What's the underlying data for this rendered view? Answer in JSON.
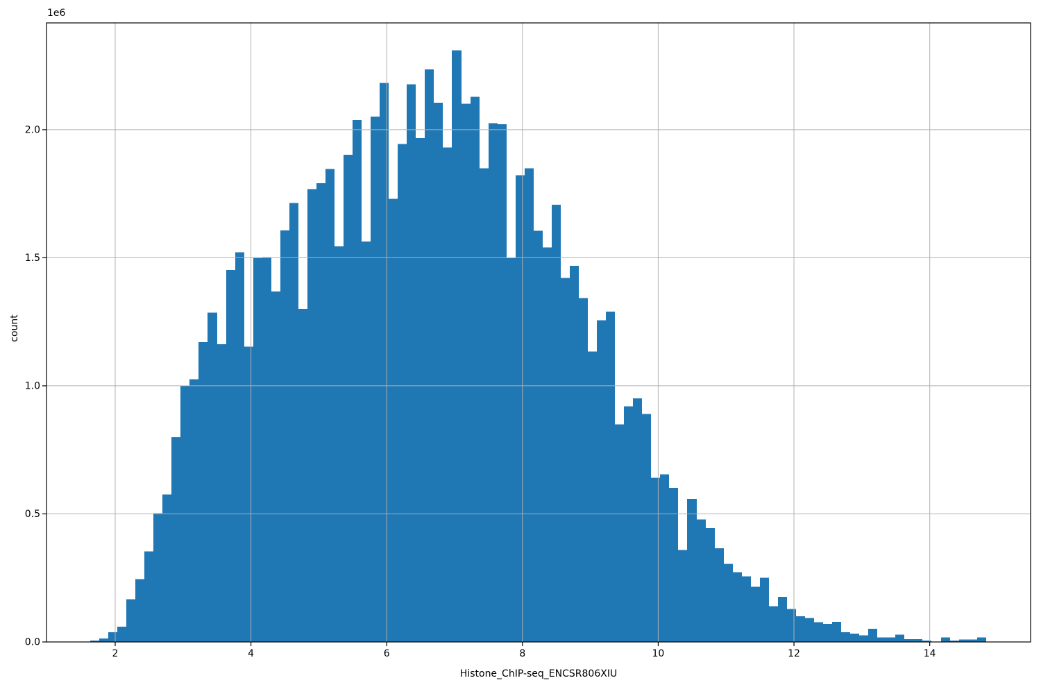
{
  "chart_data": {
    "type": "bar",
    "subtype": "histogram",
    "title": "",
    "xlabel": "Histone_ChIP-seq_ENCSR806XIU",
    "ylabel": "count",
    "offset_text": "1e6",
    "bar_color": "#1f77b4",
    "grid_color": "#b0b0b0",
    "spine_color": "#000000",
    "grid": true,
    "legend": "none",
    "xlim": [
      0.988,
      15.486
    ],
    "ylim": [
      0,
      2417000
    ],
    "xticks": [
      2,
      4,
      6,
      8,
      10,
      12,
      14
    ],
    "xtick_labels": [
      "2",
      "4",
      "6",
      "8",
      "10",
      "12",
      "14"
    ],
    "yticks": [
      0,
      500000,
      1000000,
      1500000,
      2000000
    ],
    "ytick_labels": [
      "0.0",
      "0.5",
      "1.0",
      "1.5",
      "2.0"
    ],
    "bin_start": 1.632,
    "bin_width": 0.1333,
    "counts": [
      6000,
      14000,
      38000,
      60000,
      167000,
      245000,
      353000,
      502000,
      576000,
      800000,
      1000000,
      1025000,
      1170000,
      1286000,
      1163000,
      1452000,
      1521000,
      1153000,
      1500000,
      1503000,
      1369000,
      1607000,
      1714000,
      1301000,
      1768000,
      1791000,
      1846000,
      1544000,
      1902000,
      2037000,
      1564000,
      2051000,
      2182000,
      1730000,
      1944000,
      2177000,
      1967000,
      2236000,
      2105000,
      1931000,
      2310000,
      2102000,
      2129000,
      1849000,
      2026000,
      2021000,
      1499000,
      1822000,
      1849000,
      1605000,
      1540000,
      1707000,
      1421000,
      1468000,
      1343000,
      1134000,
      1256000,
      1290000,
      849000,
      920000,
      951000,
      890000,
      641000,
      655000,
      601000,
      359000,
      558000,
      478000,
      444000,
      366000,
      305000,
      273000,
      256000,
      215000,
      250000,
      140000,
      176000,
      129000,
      100000,
      93000,
      77000,
      70000,
      79000,
      38000,
      32000,
      26000,
      52000,
      18000,
      18000,
      29000,
      11000,
      11000,
      6000,
      0,
      18000,
      5000,
      9000,
      9000,
      18000
    ]
  }
}
